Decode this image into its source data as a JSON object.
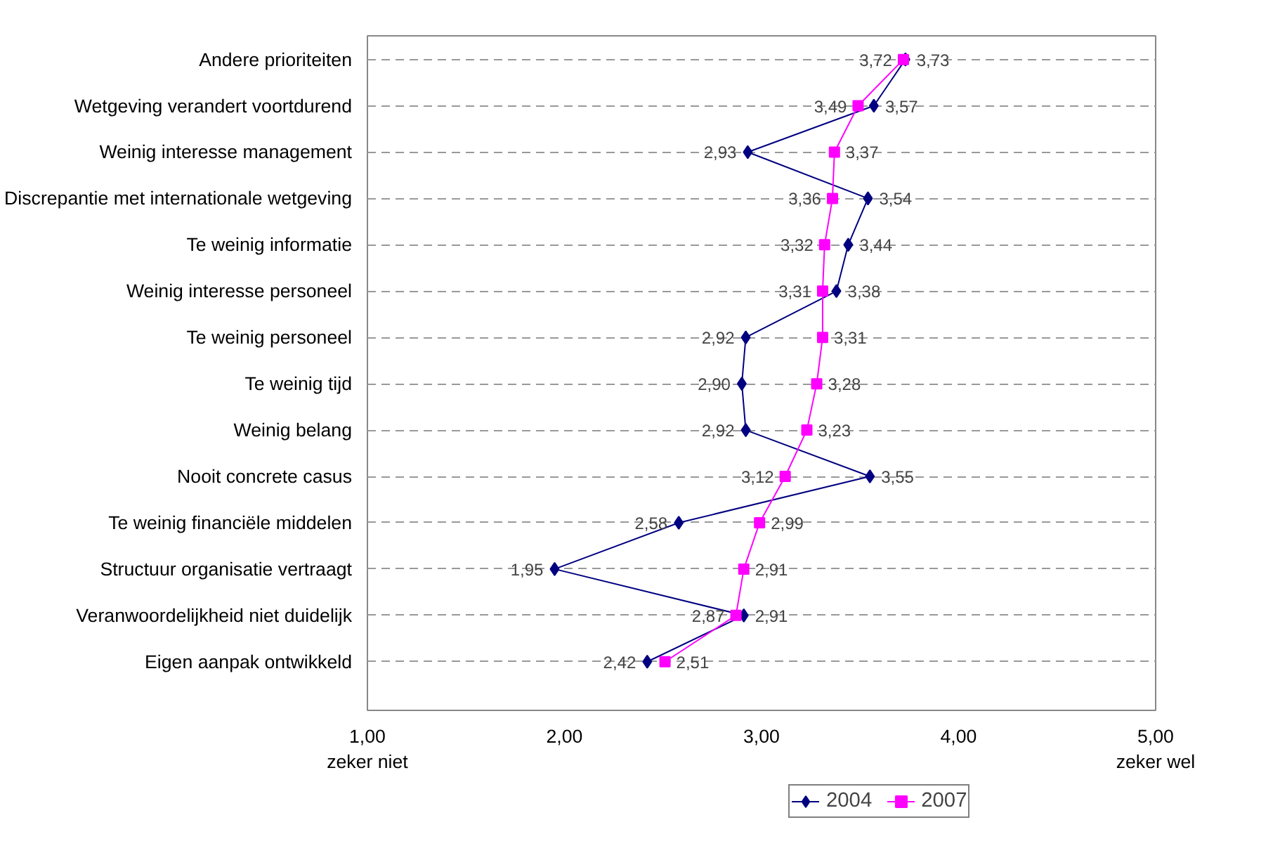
{
  "chart_data": {
    "type": "line",
    "orientation": "horizontal",
    "categories": [
      "Andere prioriteiten",
      "Wetgeving verandert voortdurend",
      "Weinig interesse management",
      "Discrepantie met internationale wetgeving",
      "Te weinig informatie",
      "Weinig interesse personeel",
      "Te weinig personeel",
      "Te weinig tijd",
      "Weinig belang",
      "Nooit concrete casus",
      "Te weinig financiële middelen",
      "Structuur organisatie vertraagt",
      "Veranwoordelijkheid niet duidelijk",
      "Eigen aanpak ontwikkeld"
    ],
    "series": [
      {
        "name": "2004",
        "color": "#000080",
        "marker": "diamond",
        "values": [
          3.73,
          3.57,
          2.93,
          3.54,
          3.44,
          3.38,
          2.92,
          2.9,
          2.92,
          3.55,
          2.58,
          1.95,
          2.91,
          2.42
        ],
        "value_labels": [
          "3,73",
          "3,57",
          "2,93",
          "3,54",
          "3,44",
          "3,38",
          "2,92",
          "2,90",
          "2,92",
          "3,55",
          "2,58",
          "1,95",
          "2,91",
          "2,42"
        ]
      },
      {
        "name": "2007",
        "color": "#ff00ff",
        "marker": "square",
        "values": [
          3.72,
          3.49,
          3.37,
          3.36,
          3.32,
          3.31,
          3.31,
          3.28,
          3.23,
          3.12,
          2.99,
          2.91,
          2.87,
          2.51
        ],
        "value_labels": [
          "3,72",
          "3,49",
          "3,37",
          "3,36",
          "3,32",
          "3,31",
          "3,31",
          "3,28",
          "3,23",
          "3,12",
          "2,99",
          "2,91",
          "2,87",
          "2,51"
        ]
      }
    ],
    "xlim": [
      1,
      5
    ],
    "xticks": [
      {
        "value": 1,
        "label": "1,00\nzeker niet"
      },
      {
        "value": 2,
        "label": "2,00"
      },
      {
        "value": 3,
        "label": "3,00"
      },
      {
        "value": 4,
        "label": "4,00"
      },
      {
        "value": 5,
        "label": "5,00\nzeker wel"
      }
    ],
    "grid": "y",
    "legend": "bottom",
    "line_style": "solid"
  }
}
